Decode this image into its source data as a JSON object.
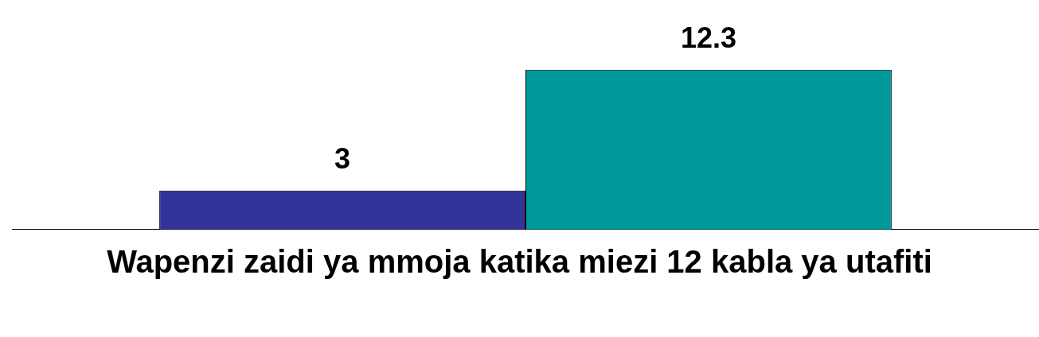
{
  "chart_data": {
    "type": "bar",
    "categories": [
      null
    ],
    "xlabel": "Wapenzi zaidi ya mmoja katika miezi 12 kabla ya utafiti",
    "series": [
      {
        "color": "#333399",
        "values": [
          3
        ]
      },
      {
        "color": "#009999",
        "values": [
          12.3
        ]
      }
    ],
    "data_labels": true,
    "legend": false,
    "grid": false
  }
}
